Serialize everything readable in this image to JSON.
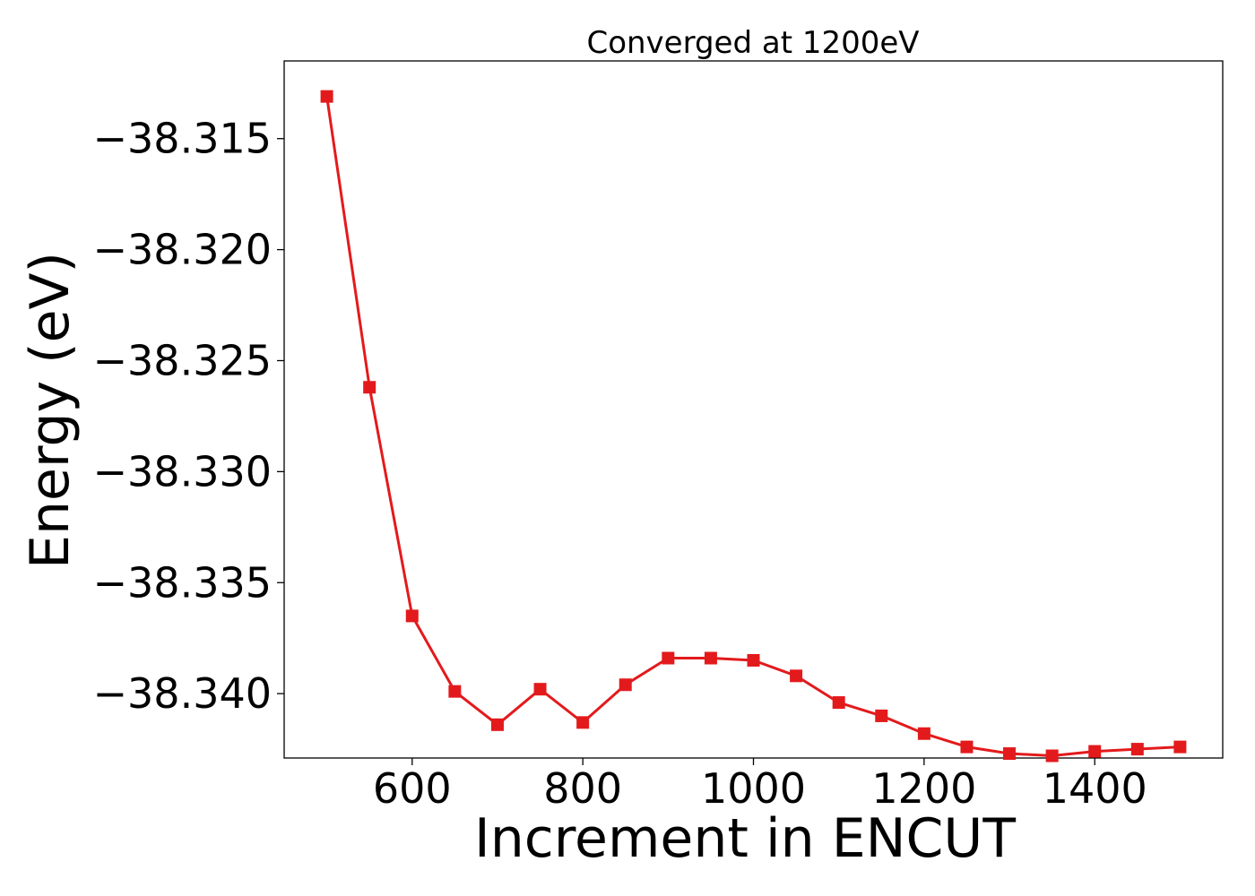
{
  "chart_data": {
    "type": "line",
    "title": "Converged at 1200eV",
    "xlabel": "Increment in ENCUT",
    "ylabel": "Energy (eV)",
    "xlim": [
      450,
      1550
    ],
    "ylim": [
      -38.3429,
      -38.3115
    ],
    "xticks": [
      600,
      800,
      1000,
      1200,
      1400
    ],
    "xtick_labels": [
      "600",
      "800",
      "1000",
      "1200",
      "1400"
    ],
    "yticks": [
      -38.315,
      -38.32,
      -38.325,
      -38.33,
      -38.335,
      -38.34
    ],
    "ytick_labels": [
      "−38.315",
      "−38.320",
      "−38.325",
      "−38.330",
      "−38.335",
      "−38.340"
    ],
    "grid": false,
    "series": [
      {
        "color": "#e31a1c",
        "marker": "square",
        "x": [
          500,
          550,
          600,
          650,
          700,
          750,
          800,
          850,
          900,
          950,
          1000,
          1050,
          1100,
          1150,
          1200,
          1250,
          1300,
          1350,
          1400,
          1450,
          1500
        ],
        "y": [
          -38.3131,
          -38.3262,
          -38.3365,
          -38.3399,
          -38.3414,
          -38.3398,
          -38.3413,
          -38.3396,
          -38.3384,
          -38.3384,
          -38.3385,
          -38.3392,
          -38.3404,
          -38.341,
          -38.3418,
          -38.3424,
          -38.3427,
          -38.3428,
          -38.3426,
          -38.3425,
          -38.3424
        ]
      }
    ]
  }
}
